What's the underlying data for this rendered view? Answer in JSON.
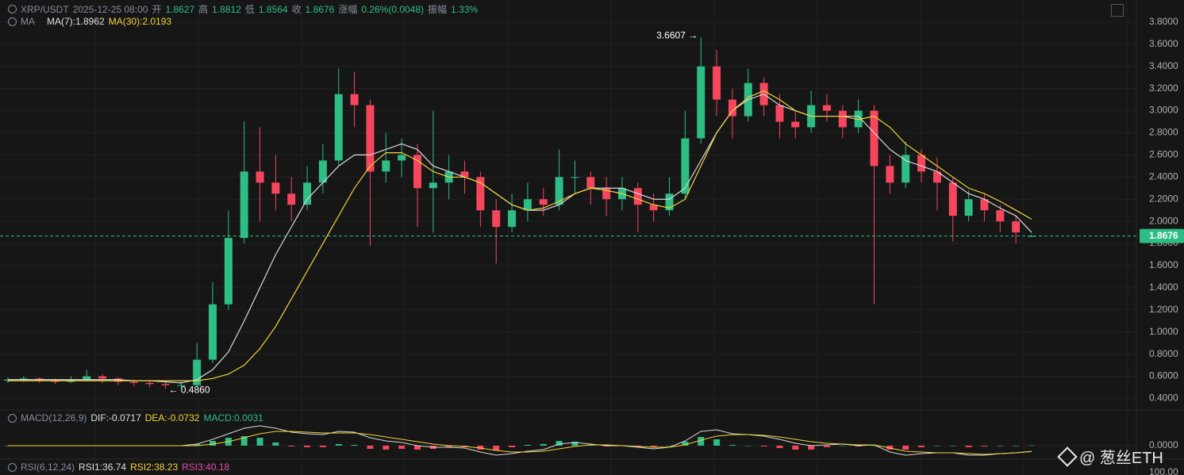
{
  "header": {
    "symbol": "XRP/USDT",
    "time": "2025-12-25 08:00",
    "open_label": "开",
    "open": "1.8627",
    "high_label": "高",
    "high": "1.8812",
    "low_label": "低",
    "low": "1.8564",
    "close_label": "收",
    "close": "1.8676",
    "change_label": "涨幅",
    "change": "0.26%(0.0048)",
    "amp_label": "振幅",
    "amp": "1.33%",
    "ma_title": "MA",
    "ma7": "MA(7):1.8962",
    "ma30": "MA(30):2.0193"
  },
  "chart_data": {
    "type": "candlestick",
    "up_color": "#2ebd85",
    "down_color": "#f6465d",
    "ylim": [
      0.31,
      4.0
    ],
    "yticks": [
      {
        "value": 0.4,
        "label": "0.4000"
      },
      {
        "value": 0.6,
        "label": "0.6000"
      },
      {
        "value": 0.8,
        "label": "0.8000"
      },
      {
        "value": 1.0,
        "label": "1.0000"
      },
      {
        "value": 1.2,
        "label": "1.2000"
      },
      {
        "value": 1.4,
        "label": "1.4000"
      },
      {
        "value": 1.6,
        "label": "1.6000"
      },
      {
        "value": 1.8,
        "label": "1.8000"
      },
      {
        "value": 2.0,
        "label": "2.0000"
      },
      {
        "value": 2.2,
        "label": "2.2000"
      },
      {
        "value": 2.4,
        "label": "2.4000"
      },
      {
        "value": 2.6,
        "label": "2.6000"
      },
      {
        "value": 2.8,
        "label": "2.8000"
      },
      {
        "value": 3.0,
        "label": "3.0000"
      },
      {
        "value": 3.2,
        "label": "3.2000"
      },
      {
        "value": 3.4,
        "label": "3.4000"
      },
      {
        "value": 3.6,
        "label": "3.6000"
      },
      {
        "value": 3.8,
        "label": "3.8000"
      }
    ],
    "candles": [
      [
        0.56,
        0.59,
        0.54,
        0.57
      ],
      [
        0.57,
        0.6,
        0.55,
        0.58
      ],
      [
        0.58,
        0.59,
        0.54,
        0.56
      ],
      [
        0.56,
        0.58,
        0.53,
        0.55
      ],
      [
        0.55,
        0.6,
        0.54,
        0.57
      ],
      [
        0.57,
        0.66,
        0.56,
        0.6
      ],
      [
        0.6,
        0.62,
        0.54,
        0.58
      ],
      [
        0.58,
        0.59,
        0.52,
        0.55
      ],
      [
        0.55,
        0.57,
        0.51,
        0.54
      ],
      [
        0.54,
        0.56,
        0.5,
        0.53
      ],
      [
        0.53,
        0.55,
        0.486,
        0.52
      ],
      [
        0.52,
        0.56,
        0.5,
        0.52
      ],
      [
        0.52,
        0.9,
        0.51,
        0.75
      ],
      [
        0.75,
        1.45,
        0.72,
        1.25
      ],
      [
        1.25,
        2.1,
        1.2,
        1.85
      ],
      [
        1.85,
        2.9,
        1.8,
        2.45
      ],
      [
        2.45,
        2.85,
        2.0,
        2.35
      ],
      [
        2.35,
        2.6,
        2.1,
        2.25
      ],
      [
        2.25,
        2.4,
        2.0,
        2.15
      ],
      [
        2.15,
        2.5,
        2.1,
        2.35
      ],
      [
        2.35,
        2.7,
        2.25,
        2.55
      ],
      [
        2.55,
        3.38,
        2.5,
        3.15
      ],
      [
        3.15,
        3.35,
        2.85,
        3.05
      ],
      [
        3.05,
        3.1,
        1.78,
        2.45
      ],
      [
        2.45,
        2.8,
        2.35,
        2.55
      ],
      [
        2.55,
        2.75,
        2.4,
        2.6
      ],
      [
        2.6,
        2.7,
        1.95,
        2.3
      ],
      [
        2.3,
        3.0,
        1.9,
        2.35
      ],
      [
        2.35,
        2.6,
        2.2,
        2.45
      ],
      [
        2.45,
        2.55,
        2.25,
        2.4
      ],
      [
        2.4,
        2.45,
        1.95,
        2.1
      ],
      [
        2.1,
        2.2,
        1.62,
        1.95
      ],
      [
        1.95,
        2.25,
        1.9,
        2.1
      ],
      [
        2.1,
        2.35,
        2.0,
        2.2
      ],
      [
        2.2,
        2.3,
        2.05,
        2.15
      ],
      [
        2.15,
        2.65,
        2.1,
        2.4
      ],
      [
        2.4,
        2.55,
        2.25,
        2.4
      ],
      [
        2.4,
        2.45,
        2.15,
        2.3
      ],
      [
        2.3,
        2.4,
        2.05,
        2.2
      ],
      [
        2.2,
        2.4,
        2.1,
        2.3
      ],
      [
        2.3,
        2.35,
        1.9,
        2.15
      ],
      [
        2.15,
        2.25,
        2.0,
        2.1
      ],
      [
        2.1,
        2.4,
        2.05,
        2.25
      ],
      [
        2.25,
        3.0,
        2.2,
        2.75
      ],
      [
        2.75,
        3.6607,
        2.7,
        3.4
      ],
      [
        3.4,
        3.55,
        2.95,
        3.1
      ],
      [
        3.1,
        3.2,
        2.75,
        2.95
      ],
      [
        2.95,
        3.38,
        2.9,
        3.25
      ],
      [
        3.25,
        3.3,
        2.95,
        3.05
      ],
      [
        3.05,
        3.15,
        2.75,
        2.9
      ],
      [
        2.9,
        3.0,
        2.75,
        2.85
      ],
      [
        2.85,
        3.18,
        2.8,
        3.05
      ],
      [
        3.05,
        3.15,
        2.9,
        3.0
      ],
      [
        3.0,
        3.05,
        2.75,
        2.85
      ],
      [
        2.85,
        3.1,
        2.8,
        3.0
      ],
      [
        3.0,
        3.05,
        1.25,
        2.5
      ],
      [
        2.5,
        2.6,
        2.25,
        2.35
      ],
      [
        2.35,
        2.72,
        2.3,
        2.6
      ],
      [
        2.6,
        2.65,
        2.35,
        2.45
      ],
      [
        2.45,
        2.58,
        2.1,
        2.35
      ],
      [
        2.35,
        2.4,
        1.82,
        2.05
      ],
      [
        2.05,
        2.28,
        2.0,
        2.2
      ],
      [
        2.2,
        2.25,
        2.0,
        2.1
      ],
      [
        2.1,
        2.15,
        1.9,
        2.0
      ],
      [
        2.0,
        2.05,
        1.8,
        1.9
      ],
      [
        1.8627,
        1.8812,
        1.8564,
        1.8676
      ]
    ],
    "series": [
      {
        "name": "MA(7)",
        "color": "#d9d9d9",
        "values": [
          0.57,
          0.57,
          0.57,
          0.57,
          0.57,
          0.57,
          0.57,
          0.57,
          0.56,
          0.56,
          0.55,
          0.54,
          0.57,
          0.66,
          0.82,
          1.1,
          1.4,
          1.7,
          1.95,
          2.2,
          2.35,
          2.5,
          2.6,
          2.6,
          2.65,
          2.7,
          2.65,
          2.5,
          2.45,
          2.4,
          2.35,
          2.25,
          2.15,
          2.1,
          2.1,
          2.15,
          2.25,
          2.3,
          2.3,
          2.3,
          2.25,
          2.2,
          2.2,
          2.3,
          2.55,
          2.8,
          3.0,
          3.1,
          3.15,
          3.05,
          3.0,
          2.95,
          2.95,
          2.95,
          2.95,
          2.8,
          2.65,
          2.55,
          2.5,
          2.45,
          2.35,
          2.25,
          2.2,
          2.12,
          2.05,
          1.9
        ]
      },
      {
        "name": "MA(30)",
        "color": "#f0d43a",
        "values": [
          0.56,
          0.56,
          0.56,
          0.56,
          0.56,
          0.56,
          0.56,
          0.56,
          0.56,
          0.56,
          0.56,
          0.56,
          0.56,
          0.58,
          0.62,
          0.7,
          0.85,
          1.05,
          1.3,
          1.55,
          1.8,
          2.05,
          2.3,
          2.5,
          2.62,
          2.62,
          2.55,
          2.45,
          2.4,
          2.4,
          2.35,
          2.25,
          2.15,
          2.1,
          2.12,
          2.18,
          2.25,
          2.3,
          2.28,
          2.25,
          2.2,
          2.15,
          2.12,
          2.2,
          2.5,
          2.8,
          3.0,
          3.12,
          3.18,
          3.1,
          3.0,
          2.95,
          2.95,
          2.95,
          2.92,
          2.95,
          2.85,
          2.7,
          2.6,
          2.5,
          2.4,
          2.3,
          2.25,
          2.18,
          2.1,
          2.02
        ]
      }
    ],
    "last_price": 1.8676,
    "max_label": "3.6607 →",
    "min_label": "← 0.4860"
  },
  "macd": {
    "title": "MACD(12,26,9)",
    "dif_text": "DIF:-0.0717",
    "dea_text": "DEA:-0.0732",
    "macd_text": "MACD:0.0031",
    "ylim": [
      -0.3,
      0.3
    ],
    "yticks": [
      {
        "value": 0,
        "label": "0.0000"
      }
    ],
    "dif": [
      0,
      0,
      0,
      0,
      0,
      0,
      0,
      0,
      0,
      0,
      0,
      0,
      0.02,
      0.08,
      0.15,
      0.22,
      0.25,
      0.22,
      0.17,
      0.15,
      0.14,
      0.18,
      0.17,
      0.1,
      0.06,
      0.04,
      0.0,
      -0.02,
      -0.02,
      -0.03,
      -0.08,
      -0.12,
      -0.1,
      -0.07,
      -0.05,
      0.02,
      0.04,
      0.02,
      0.0,
      0.0,
      -0.02,
      -0.04,
      -0.02,
      0.06,
      0.18,
      0.2,
      0.15,
      0.14,
      0.12,
      0.08,
      0.03,
      0.0,
      0.01,
      0.02,
      0.0,
      0.01,
      -0.08,
      -0.12,
      -0.1,
      -0.09,
      -0.09,
      -0.12,
      -0.12,
      -0.1,
      -0.09,
      -0.0717
    ],
    "dea": [
      0,
      0,
      0,
      0,
      0,
      0,
      0,
      0,
      0,
      0,
      0,
      0,
      0.0,
      0.02,
      0.05,
      0.1,
      0.15,
      0.18,
      0.18,
      0.17,
      0.16,
      0.16,
      0.16,
      0.14,
      0.11,
      0.08,
      0.05,
      0.02,
      0.0,
      -0.01,
      -0.03,
      -0.06,
      -0.08,
      -0.08,
      -0.07,
      -0.04,
      -0.01,
      0.01,
      0.01,
      0.0,
      -0.01,
      -0.02,
      -0.02,
      0.01,
      0.07,
      0.12,
      0.14,
      0.14,
      0.13,
      0.11,
      0.08,
      0.05,
      0.03,
      0.02,
      0.01,
      0.01,
      -0.03,
      -0.07,
      -0.08,
      -0.09,
      -0.09,
      -0.1,
      -0.11,
      -0.1,
      -0.09,
      -0.0732
    ],
    "hist": [
      0,
      0,
      0,
      0,
      0,
      0,
      0,
      0,
      0,
      0,
      0,
      0,
      0.02,
      0.06,
      0.1,
      0.12,
      0.1,
      0.04,
      -0.01,
      -0.02,
      -0.02,
      0.02,
      0.01,
      -0.04,
      -0.05,
      -0.04,
      -0.05,
      -0.04,
      -0.02,
      -0.02,
      -0.05,
      -0.06,
      -0.02,
      0.01,
      0.02,
      0.06,
      0.05,
      0.01,
      -0.01,
      0.0,
      -0.01,
      -0.02,
      0.0,
      0.05,
      0.11,
      0.08,
      0.01,
      0.0,
      -0.01,
      -0.03,
      -0.05,
      -0.05,
      -0.02,
      0.0,
      -0.01,
      0.0,
      -0.05,
      -0.05,
      -0.02,
      0.0,
      0.0,
      -0.02,
      -0.01,
      0.0,
      0.0,
      0.0031
    ]
  },
  "rsi": {
    "title": "RSI(6,12,24)",
    "rsi1": "RSI1:36.74",
    "rsi2": "RSI2:38.23",
    "rsi3": "RSI3:40.18",
    "yticks": [
      {
        "value": 100,
        "label": "100.00"
      }
    ]
  },
  "watermark": "@ 葱丝ETH"
}
